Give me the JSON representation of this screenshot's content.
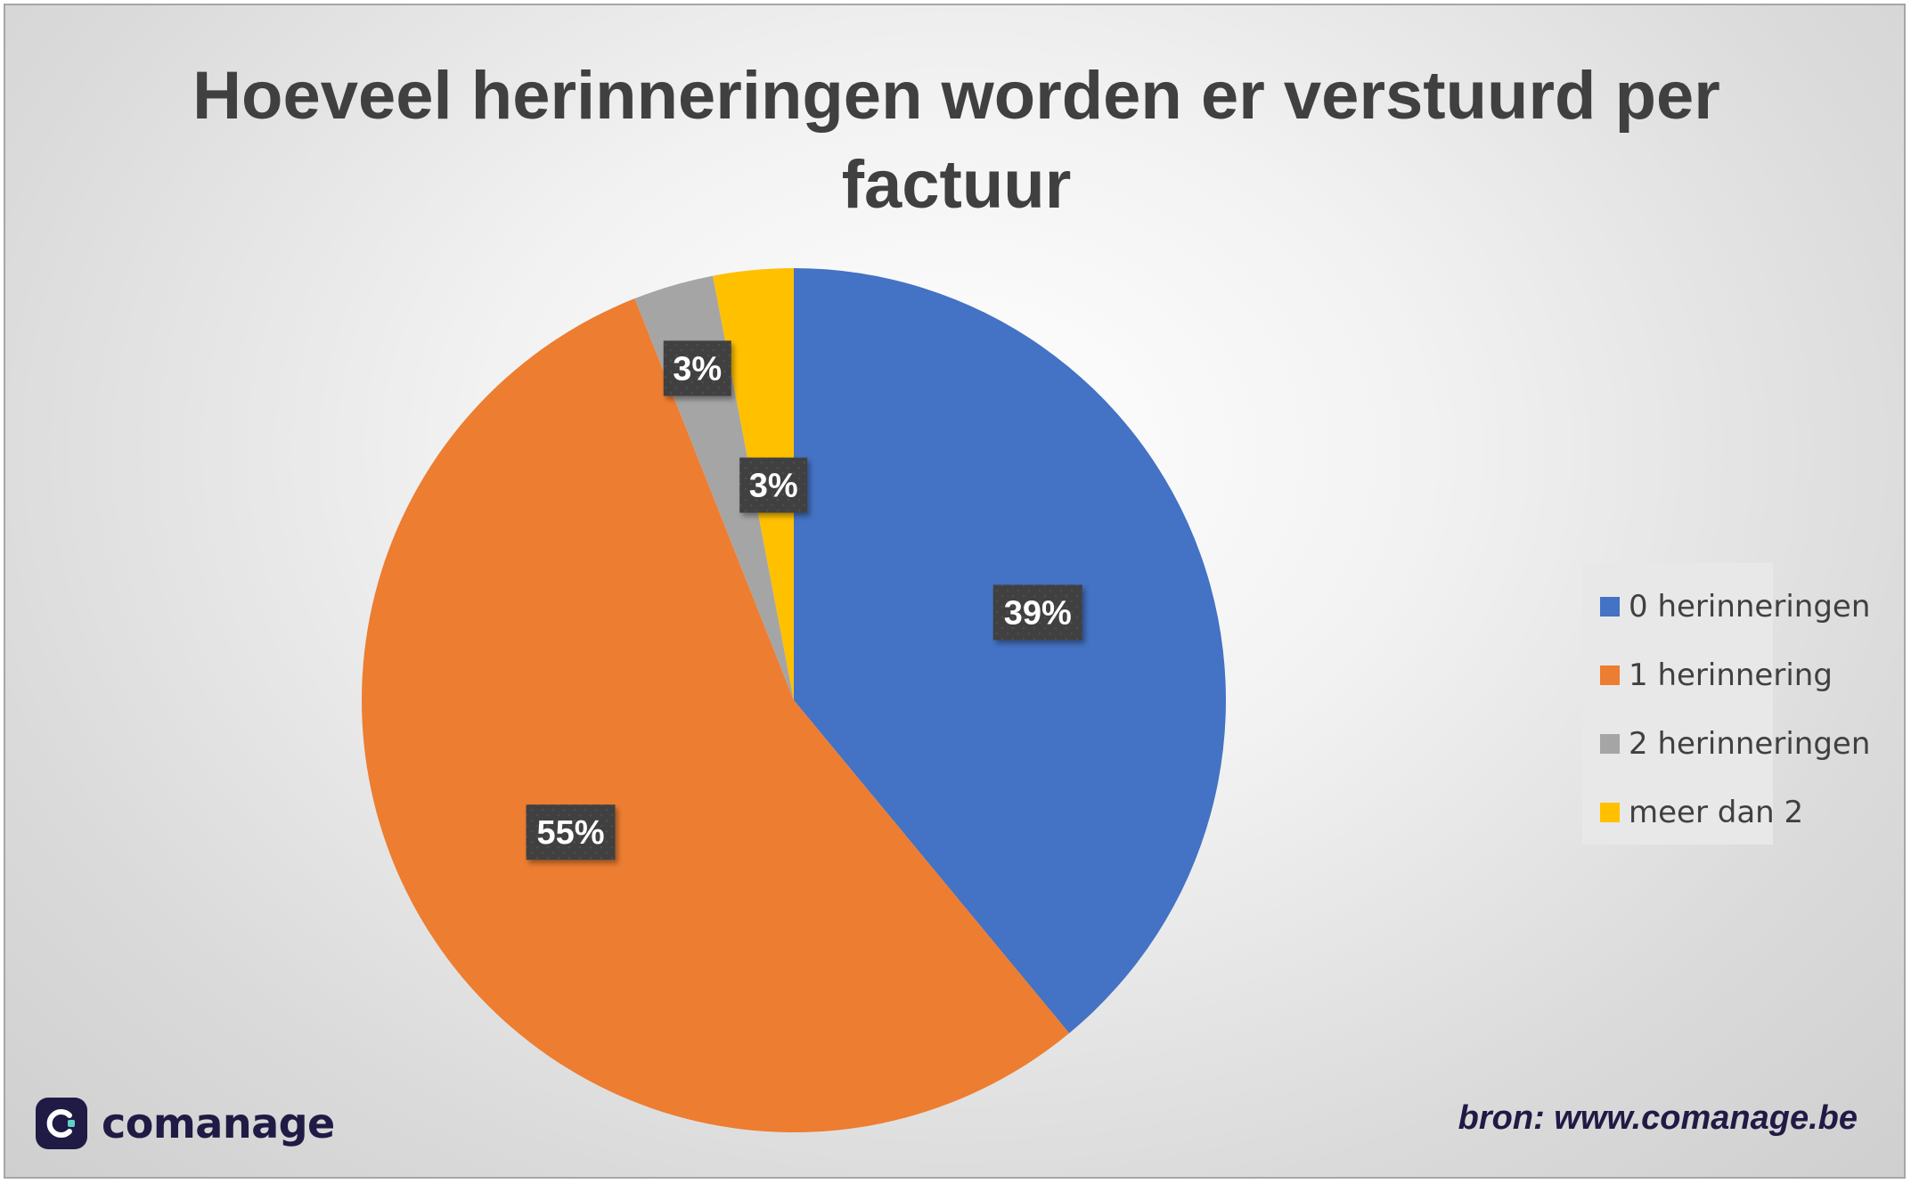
{
  "chart_data": {
    "type": "pie",
    "title": "Hoeveel herinneringen worden er verstuurd per factuur",
    "categories": [
      "0 herinneringen",
      "1 herinnering",
      "2 herinneringen",
      "meer dan 2"
    ],
    "values": [
      39,
      55,
      3,
      3
    ],
    "labels": [
      "39%",
      "55%",
      "3%",
      "3%"
    ],
    "colors": [
      "#4472c4",
      "#ed7d31",
      "#a5a5a5",
      "#ffc000"
    ],
    "start_angle_deg": 0,
    "direction": "clockwise",
    "legend_position": "right"
  },
  "branding": {
    "logo_text": "comanage",
    "source": "bron: www.comanage.be"
  }
}
